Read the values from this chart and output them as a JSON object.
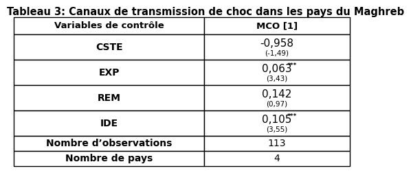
{
  "title": "Tableau 3: Canaux de transmission de choc dans les pays du Maghreb",
  "title_fontsize": 10.5,
  "col_headers": [
    "Variables de contrôle",
    "MCO [1]"
  ],
  "rows": [
    {
      "label": "CSTE",
      "value": "-0,958",
      "sub": "(-1,49)",
      "stars": ""
    },
    {
      "label": "EXP",
      "value": "0,063",
      "sub": "(3,43)",
      "stars": "***"
    },
    {
      "label": "REM",
      "value": "0,142",
      "sub": "(0,97)",
      "stars": ""
    },
    {
      "label": "IDE",
      "value": "0,105",
      "sub": "(3,55)",
      "stars": "***"
    }
  ],
  "footer_rows": [
    {
      "label": "Nombre d’observations",
      "value": "113"
    },
    {
      "label": "Nombre de pays",
      "value": "4"
    }
  ],
  "border_color": "#000000",
  "text_color": "#000000",
  "header_fontsize": 9.5,
  "cell_fontsize": 10,
  "sub_fontsize": 7.5,
  "stars_fontsize": 6.5,
  "value_fontsize": 11
}
